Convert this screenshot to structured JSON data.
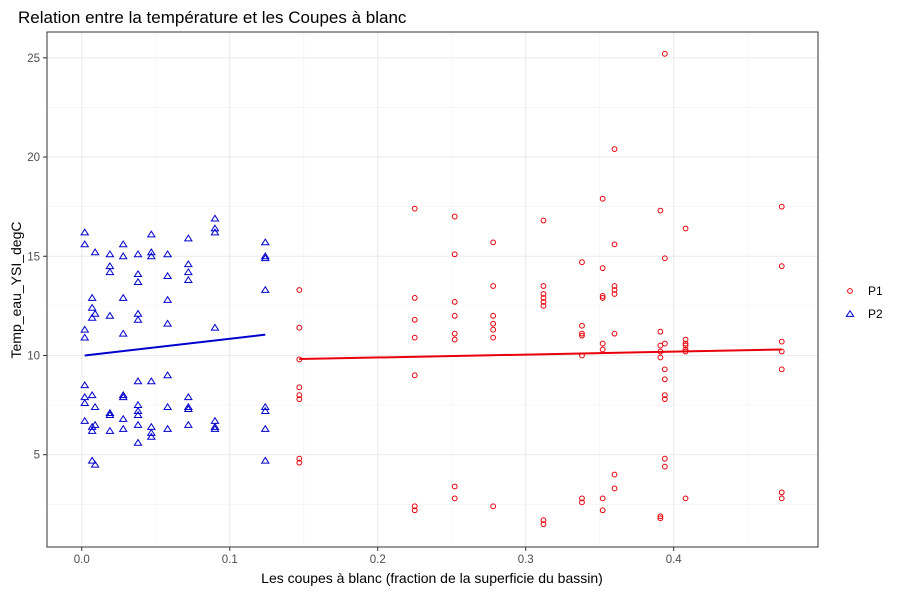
{
  "chart_data": {
    "type": "scatter",
    "title": "Relation entre la température et les Coupes à blanc",
    "xlabel": "Les coupes à blanc (fraction de la superficie du bassin)",
    "ylabel": "Temp_eau_YSI_degC",
    "xlim": [
      -0.0235,
      0.4975
    ],
    "ylim": [
      0.35,
      26.3
    ],
    "x_ticks": [
      "0.0",
      "0.1",
      "0.2",
      "0.3",
      "0.4"
    ],
    "x_tick_values": [
      0,
      0.1,
      0.2,
      0.3,
      0.4
    ],
    "y_ticks": [
      "5",
      "10",
      "15",
      "20",
      "25"
    ],
    "y_tick_values": [
      5,
      10,
      15,
      20,
      25
    ],
    "grid": true,
    "legend_position": "right",
    "series": [
      {
        "name": "P1",
        "marker": "circle",
        "color": "#e8000b",
        "points": [
          [
            0.147,
            13.3
          ],
          [
            0.147,
            11.4
          ],
          [
            0.147,
            9.8
          ],
          [
            0.147,
            8.4
          ],
          [
            0.147,
            8.0
          ],
          [
            0.147,
            7.8
          ],
          [
            0.147,
            4.8
          ],
          [
            0.147,
            4.6
          ],
          [
            0.225,
            17.4
          ],
          [
            0.225,
            12.9
          ],
          [
            0.225,
            11.8
          ],
          [
            0.225,
            10.9
          ],
          [
            0.225,
            9.0
          ],
          [
            0.225,
            2.4
          ],
          [
            0.225,
            2.2
          ],
          [
            0.252,
            17.0
          ],
          [
            0.252,
            15.1
          ],
          [
            0.252,
            12.7
          ],
          [
            0.252,
            12.0
          ],
          [
            0.252,
            11.1
          ],
          [
            0.252,
            10.8
          ],
          [
            0.252,
            3.4
          ],
          [
            0.252,
            2.8
          ],
          [
            0.278,
            15.7
          ],
          [
            0.278,
            13.5
          ],
          [
            0.278,
            12.0
          ],
          [
            0.278,
            11.6
          ],
          [
            0.278,
            11.3
          ],
          [
            0.278,
            10.9
          ],
          [
            0.278,
            2.4
          ],
          [
            0.312,
            16.8
          ],
          [
            0.312,
            13.5
          ],
          [
            0.312,
            13.1
          ],
          [
            0.312,
            12.9
          ],
          [
            0.312,
            12.7
          ],
          [
            0.312,
            12.5
          ],
          [
            0.312,
            1.7
          ],
          [
            0.312,
            1.5
          ],
          [
            0.338,
            14.7
          ],
          [
            0.338,
            11.5
          ],
          [
            0.338,
            11.1
          ],
          [
            0.338,
            11.0
          ],
          [
            0.338,
            10.0
          ],
          [
            0.338,
            2.8
          ],
          [
            0.338,
            2.6
          ],
          [
            0.352,
            17.9
          ],
          [
            0.352,
            14.4
          ],
          [
            0.352,
            13.0
          ],
          [
            0.352,
            12.9
          ],
          [
            0.352,
            10.6
          ],
          [
            0.352,
            10.3
          ],
          [
            0.352,
            2.8
          ],
          [
            0.352,
            2.2
          ],
          [
            0.36,
            20.4
          ],
          [
            0.36,
            15.6
          ],
          [
            0.36,
            13.5
          ],
          [
            0.36,
            13.3
          ],
          [
            0.36,
            13.1
          ],
          [
            0.36,
            11.1
          ],
          [
            0.36,
            4.0
          ],
          [
            0.36,
            3.3
          ],
          [
            0.391,
            17.3
          ],
          [
            0.391,
            11.2
          ],
          [
            0.391,
            10.5
          ],
          [
            0.391,
            10.2
          ],
          [
            0.391,
            9.9
          ],
          [
            0.391,
            1.9
          ],
          [
            0.391,
            1.8
          ],
          [
            0.394,
            25.2
          ],
          [
            0.394,
            14.9
          ],
          [
            0.394,
            10.6
          ],
          [
            0.394,
            9.3
          ],
          [
            0.394,
            8.8
          ],
          [
            0.394,
            8.0
          ],
          [
            0.394,
            7.8
          ],
          [
            0.394,
            4.8
          ],
          [
            0.394,
            4.4
          ],
          [
            0.408,
            16.4
          ],
          [
            0.408,
            10.8
          ],
          [
            0.408,
            10.6
          ],
          [
            0.408,
            10.5
          ],
          [
            0.408,
            10.3
          ],
          [
            0.408,
            10.2
          ],
          [
            0.408,
            2.8
          ],
          [
            0.473,
            17.5
          ],
          [
            0.473,
            14.5
          ],
          [
            0.473,
            10.7
          ],
          [
            0.473,
            10.2
          ],
          [
            0.473,
            9.3
          ],
          [
            0.473,
            3.1
          ],
          [
            0.473,
            2.8
          ]
        ],
        "trend": [
          [
            0.147,
            9.82
          ],
          [
            0.473,
            10.3
          ]
        ]
      },
      {
        "name": "P2",
        "marker": "triangle",
        "color": "#0000cd",
        "points": [
          [
            0.002,
            16.2
          ],
          [
            0.002,
            15.6
          ],
          [
            0.002,
            11.3
          ],
          [
            0.002,
            10.9
          ],
          [
            0.002,
            8.5
          ],
          [
            0.002,
            7.9
          ],
          [
            0.002,
            7.6
          ],
          [
            0.002,
            6.7
          ],
          [
            0.007,
            12.9
          ],
          [
            0.007,
            12.4
          ],
          [
            0.007,
            11.9
          ],
          [
            0.007,
            8.0
          ],
          [
            0.007,
            6.4
          ],
          [
            0.007,
            6.2
          ],
          [
            0.007,
            4.7
          ],
          [
            0.009,
            15.2
          ],
          [
            0.009,
            12.1
          ],
          [
            0.009,
            7.4
          ],
          [
            0.009,
            6.5
          ],
          [
            0.009,
            4.5
          ],
          [
            0.019,
            15.1
          ],
          [
            0.019,
            14.5
          ],
          [
            0.019,
            14.2
          ],
          [
            0.019,
            12.0
          ],
          [
            0.019,
            7.1
          ],
          [
            0.019,
            7.0
          ],
          [
            0.019,
            6.2
          ],
          [
            0.028,
            15.6
          ],
          [
            0.028,
            15.0
          ],
          [
            0.028,
            12.9
          ],
          [
            0.028,
            11.1
          ],
          [
            0.028,
            8.0
          ],
          [
            0.028,
            7.9
          ],
          [
            0.028,
            6.8
          ],
          [
            0.028,
            6.3
          ],
          [
            0.038,
            15.1
          ],
          [
            0.038,
            14.1
          ],
          [
            0.038,
            13.7
          ],
          [
            0.038,
            12.1
          ],
          [
            0.038,
            11.8
          ],
          [
            0.038,
            8.7
          ],
          [
            0.038,
            7.5
          ],
          [
            0.038,
            7.2
          ],
          [
            0.038,
            7.0
          ],
          [
            0.038,
            6.5
          ],
          [
            0.038,
            5.6
          ],
          [
            0.047,
            16.1
          ],
          [
            0.047,
            15.2
          ],
          [
            0.047,
            15.0
          ],
          [
            0.047,
            8.7
          ],
          [
            0.047,
            6.4
          ],
          [
            0.047,
            6.1
          ],
          [
            0.047,
            5.9
          ],
          [
            0.058,
            15.1
          ],
          [
            0.058,
            14.0
          ],
          [
            0.058,
            12.8
          ],
          [
            0.058,
            11.6
          ],
          [
            0.058,
            9.0
          ],
          [
            0.058,
            7.4
          ],
          [
            0.058,
            6.3
          ],
          [
            0.072,
            15.9
          ],
          [
            0.072,
            14.6
          ],
          [
            0.072,
            14.2
          ],
          [
            0.072,
            13.8
          ],
          [
            0.072,
            7.9
          ],
          [
            0.072,
            7.4
          ],
          [
            0.072,
            7.3
          ],
          [
            0.072,
            6.5
          ],
          [
            0.09,
            16.9
          ],
          [
            0.09,
            16.4
          ],
          [
            0.09,
            16.2
          ],
          [
            0.09,
            11.4
          ],
          [
            0.09,
            6.7
          ],
          [
            0.09,
            6.4
          ],
          [
            0.09,
            6.3
          ],
          [
            0.124,
            15.7
          ],
          [
            0.124,
            15.0
          ],
          [
            0.124,
            14.9
          ],
          [
            0.124,
            13.3
          ],
          [
            0.124,
            7.4
          ],
          [
            0.124,
            7.2
          ],
          [
            0.124,
            6.3
          ],
          [
            0.124,
            4.7
          ]
        ],
        "trend": [
          [
            0.002,
            10.0
          ],
          [
            0.124,
            11.05
          ]
        ]
      }
    ]
  }
}
